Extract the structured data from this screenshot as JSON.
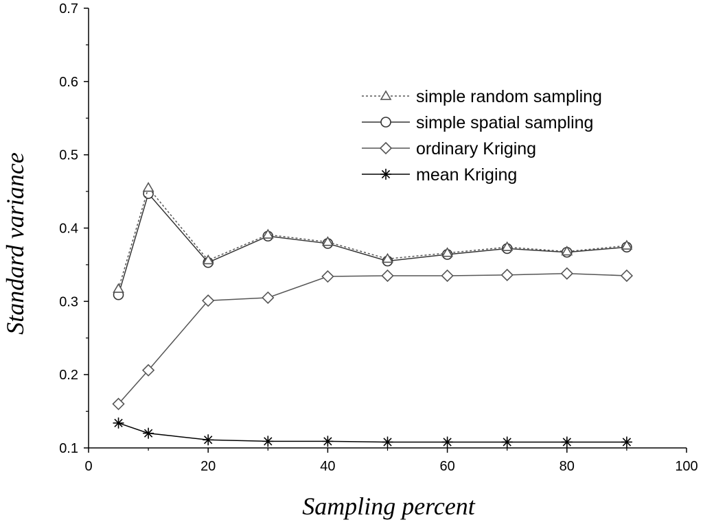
{
  "chart_data": {
    "type": "line",
    "title": "",
    "xlabel": "Sampling percent",
    "ylabel": "Standard variance",
    "xlim": [
      0,
      100
    ],
    "ylim": [
      0.1,
      0.7
    ],
    "xticks": [
      0,
      20,
      40,
      60,
      80,
      100
    ],
    "yticks": [
      0.1,
      0.2,
      0.3,
      0.4,
      0.5,
      0.6,
      0.7
    ],
    "xtick_labels": [
      "0",
      "20",
      "40",
      "60",
      "80",
      "100"
    ],
    "ytick_labels": [
      "0.1",
      "0.2",
      "0.3",
      "0.4",
      "0.5",
      "0.6",
      "0.7"
    ],
    "grid": false,
    "legend_position": "top-right",
    "x": [
      5,
      10,
      20,
      30,
      40,
      50,
      60,
      70,
      80,
      90
    ],
    "series": [
      {
        "name": "simple random sampling",
        "marker": "triangle",
        "dash": "dotted",
        "color": "#555555",
        "values": [
          0.317,
          0.455,
          0.356,
          0.391,
          0.381,
          0.358,
          0.366,
          0.374,
          0.368,
          0.376
        ]
      },
      {
        "name": "simple spatial sampling",
        "marker": "circle",
        "dash": "solid",
        "color": "#333333",
        "values": [
          0.309,
          0.447,
          0.353,
          0.389,
          0.379,
          0.355,
          0.364,
          0.372,
          0.367,
          0.374
        ]
      },
      {
        "name": "ordinary Kriging",
        "marker": "diamond",
        "dash": "solid",
        "color": "#555555",
        "values": [
          0.16,
          0.206,
          0.301,
          0.305,
          0.334,
          0.335,
          0.335,
          0.336,
          0.338,
          0.335
        ]
      },
      {
        "name": "mean Kriging",
        "marker": "asterisk",
        "dash": "solid",
        "color": "#000000",
        "values": [
          0.134,
          0.12,
          0.111,
          0.109,
          0.109,
          0.108,
          0.108,
          0.108,
          0.108,
          0.108
        ]
      }
    ]
  }
}
